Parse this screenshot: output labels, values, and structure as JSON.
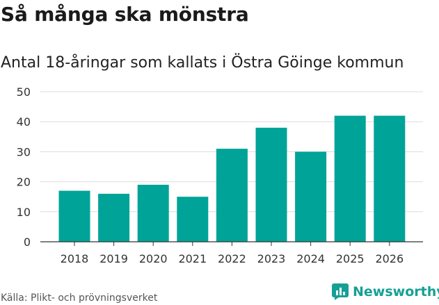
{
  "header": {
    "title": "Så många ska mönstra",
    "subtitle": "Antal 18-åringar som kallats i Östra Göinge kommun"
  },
  "chart_data": {
    "type": "bar",
    "title": "Så många ska mönstra",
    "subtitle": "Antal 18-åringar som kallats i Östra Göinge kommun",
    "categories": [
      "2018",
      "2019",
      "2020",
      "2021",
      "2022",
      "2023",
      "2024",
      "2025",
      "2026"
    ],
    "values": [
      17,
      16,
      19,
      15,
      31,
      38,
      30,
      42,
      42
    ],
    "yticks": [
      "0",
      "10",
      "20",
      "30",
      "40",
      "50"
    ],
    "ylim": [
      0,
      50
    ],
    "xlabel": "",
    "ylabel": "",
    "grid": true,
    "bar_color": "#00a398"
  },
  "footer": {
    "source": "Källa: Plikt- och prövningsverket",
    "brand": "Newsworthy",
    "brand_color": "#16a095",
    "brand_icon": "bar-chart-icon"
  }
}
